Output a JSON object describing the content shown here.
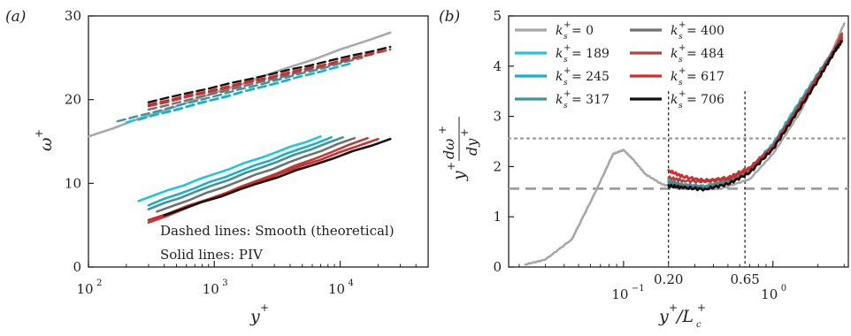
{
  "chart_data": [
    {
      "type": "line",
      "panel_label": "(a)",
      "xlabel": "y+",
      "ylabel": "ω+",
      "xscale": "log",
      "xlim": [
        100,
        50000
      ],
      "ylim": [
        0,
        30
      ],
      "x_ticks": [
        "10",
        "10",
        "10"
      ],
      "x_tick_exps": [
        "2",
        "3",
        "4"
      ],
      "y_ticks": [
        "0",
        "10",
        "20",
        "30"
      ],
      "annotations": [
        "Dashed lines: Smooth (theoretical)",
        "Solid lines: PIV"
      ],
      "series": [
        {
          "ks": 0,
          "color": "#a8a8a8",
          "style": "solid",
          "x": [
            100,
            25000
          ],
          "y": [
            15.6,
            28.0
          ]
        },
        {
          "ks": 189,
          "color": "#22c6dc",
          "style": "solid",
          "x": [
            250,
            7000
          ],
          "y": [
            7.9,
            15.6
          ]
        },
        {
          "ks": 245,
          "color": "#1ab0c8",
          "style": "solid",
          "x": [
            300,
            8500
          ],
          "y": [
            7.4,
            15.5
          ]
        },
        {
          "ks": 317,
          "color": "#3f939d",
          "style": "solid",
          "x": [
            300,
            10500
          ],
          "y": [
            6.9,
            15.5
          ]
        },
        {
          "ks": 400,
          "color": "#707070",
          "style": "solid",
          "x": [
            350,
            13000
          ],
          "y": [
            6.6,
            15.4
          ]
        },
        {
          "ks": 484,
          "color": "#b53f3f",
          "style": "solid",
          "x": [
            300,
            16500
          ],
          "y": [
            5.3,
            15.4
          ]
        },
        {
          "ks": 617,
          "color": "#d42a2a",
          "style": "solid",
          "x": [
            300,
            20000
          ],
          "y": [
            5.6,
            15.3
          ]
        },
        {
          "ks": 706,
          "color": "#111111",
          "style": "solid",
          "x": [
            400,
            25000
          ],
          "y": [
            6.2,
            15.3
          ]
        },
        {
          "ks": 189,
          "color": "#22c6dc",
          "style": "dashed",
          "x": [
            200,
            10000
          ],
          "y": [
            17.3,
            24.0
          ]
        },
        {
          "ks": 245,
          "color": "#1ab0c8",
          "style": "dashed",
          "x": [
            250,
            12000
          ],
          "y": [
            17.6,
            24.3
          ]
        },
        {
          "ks": 317,
          "color": "#3f939d",
          "style": "dashed",
          "x": [
            170,
            15000
          ],
          "y": [
            17.4,
            25.0
          ]
        },
        {
          "ks": 400,
          "color": "#707070",
          "style": "dashed",
          "x": [
            300,
            18000
          ],
          "y": [
            18.8,
            25.4
          ]
        },
        {
          "ks": 484,
          "color": "#b53f3f",
          "style": "dashed",
          "x": [
            300,
            22000
          ],
          "y": [
            19.2,
            25.8
          ]
        },
        {
          "ks": 617,
          "color": "#d42a2a",
          "style": "dashed",
          "x": [
            300,
            25000
          ],
          "y": [
            19.4,
            26.0
          ]
        },
        {
          "ks": 706,
          "color": "#111111",
          "style": "dashed",
          "x": [
            300,
            25000
          ],
          "y": [
            19.7,
            26.3
          ]
        }
      ]
    },
    {
      "type": "line",
      "panel_label": "(b)",
      "xlabel": "y+/Lc+",
      "ylabel": "y+ dω+/dy+",
      "xscale": "log",
      "xlim": [
        0.017,
        3.2
      ],
      "ylim": [
        0,
        5
      ],
      "x_ticks": [
        "10",
        "10"
      ],
      "x_tick_exps": [
        "−1",
        "0"
      ],
      "y_ticks": [
        "0",
        "1",
        "2",
        "3",
        "4",
        "5"
      ],
      "vlines": [
        {
          "x": 0.2,
          "label": "0.20"
        },
        {
          "x": 0.65,
          "label": "0.65"
        }
      ],
      "hlines": [
        {
          "y": 2.56,
          "style": "dotted"
        },
        {
          "y": 1.56,
          "style": "dashed"
        }
      ],
      "legend": {
        "placement": "top-left",
        "entries": [
          {
            "label": "0",
            "color": "#a8a8a8"
          },
          {
            "label": "189",
            "color": "#22c6dc"
          },
          {
            "label": "245",
            "color": "#1ab0c8"
          },
          {
            "label": "317",
            "color": "#3f939d"
          },
          {
            "label": "400",
            "color": "#707070"
          },
          {
            "label": "484",
            "color": "#b53f3f"
          },
          {
            "label": "617",
            "color": "#d42a2a"
          },
          {
            "label": "706",
            "color": "#111111"
          }
        ]
      },
      "series": [
        {
          "ks": 0,
          "color": "#a8a8a8",
          "x": [
            0.022,
            0.03,
            0.045,
            0.065,
            0.085,
            0.1,
            0.115,
            0.14,
            0.18,
            0.22,
            0.3,
            0.45,
            0.7,
            1.0,
            1.5,
            2.0,
            2.5,
            3.0
          ],
          "y": [
            0.05,
            0.15,
            0.55,
            1.5,
            2.25,
            2.33,
            2.15,
            1.85,
            1.65,
            1.58,
            1.55,
            1.56,
            1.75,
            2.25,
            3.05,
            3.75,
            4.3,
            4.85
          ]
        },
        {
          "ks": 189,
          "color": "#22c6dc",
          "x": [
            0.2,
            0.25,
            0.35,
            0.5,
            0.7,
            1.0,
            1.4,
            2.0,
            2.6,
            2.9
          ],
          "y": [
            1.7,
            1.62,
            1.6,
            1.72,
            1.95,
            2.45,
            3.15,
            3.85,
            4.35,
            4.6
          ]
        },
        {
          "ks": 245,
          "color": "#1ab0c8",
          "x": [
            0.2,
            0.25,
            0.35,
            0.5,
            0.7,
            1.0,
            1.4,
            2.0,
            2.6,
            2.9
          ],
          "y": [
            1.68,
            1.6,
            1.58,
            1.7,
            1.93,
            2.4,
            3.1,
            3.8,
            4.3,
            4.55
          ]
        },
        {
          "ks": 317,
          "color": "#3f939d",
          "x": [
            0.2,
            0.25,
            0.35,
            0.5,
            0.7,
            1.0,
            1.4,
            2.0,
            2.6,
            2.9
          ],
          "y": [
            1.72,
            1.64,
            1.6,
            1.72,
            1.95,
            2.42,
            3.1,
            3.82,
            4.35,
            4.6
          ]
        },
        {
          "ks": 400,
          "color": "#707070",
          "x": [
            0.2,
            0.25,
            0.35,
            0.5,
            0.7,
            1.0,
            1.4,
            2.0,
            2.6,
            2.9
          ],
          "y": [
            1.65,
            1.6,
            1.57,
            1.68,
            1.9,
            2.38,
            3.05,
            3.75,
            4.3,
            4.6
          ]
        },
        {
          "ks": 484,
          "color": "#b53f3f",
          "x": [
            0.2,
            0.25,
            0.35,
            0.5,
            0.7,
            1.0,
            1.4,
            2.0,
            2.6,
            2.9
          ],
          "y": [
            1.78,
            1.72,
            1.7,
            1.78,
            1.98,
            2.4,
            3.08,
            3.8,
            4.35,
            4.65
          ]
        },
        {
          "ks": 617,
          "color": "#d42a2a",
          "x": [
            0.2,
            0.25,
            0.35,
            0.5,
            0.7,
            1.0,
            1.4,
            2.0,
            2.6,
            2.9
          ],
          "y": [
            1.92,
            1.8,
            1.72,
            1.76,
            1.95,
            2.38,
            3.05,
            3.78,
            4.3,
            4.55
          ]
        },
        {
          "ks": 706,
          "color": "#111111",
          "x": [
            0.2,
            0.25,
            0.35,
            0.5,
            0.7,
            1.0,
            1.4,
            2.0,
            2.6,
            2.9
          ],
          "y": [
            1.62,
            1.58,
            1.55,
            1.65,
            1.88,
            2.35,
            3.0,
            3.72,
            4.3,
            4.5
          ]
        }
      ]
    }
  ]
}
